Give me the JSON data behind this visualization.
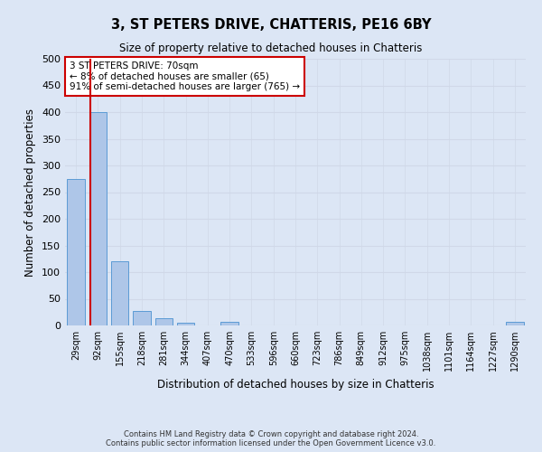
{
  "title": "3, ST PETERS DRIVE, CHATTERIS, PE16 6BY",
  "subtitle": "Size of property relative to detached houses in Chatteris",
  "xlabel": "Distribution of detached houses by size in Chatteris",
  "ylabel": "Number of detached properties",
  "footer_line1": "Contains HM Land Registry data © Crown copyright and database right 2024.",
  "footer_line2": "Contains public sector information licensed under the Open Government Licence v3.0.",
  "bar_color": "#aec6e8",
  "bar_edge_color": "#5b9bd5",
  "categories": [
    "29sqm",
    "92sqm",
    "155sqm",
    "218sqm",
    "281sqm",
    "344sqm",
    "407sqm",
    "470sqm",
    "533sqm",
    "596sqm",
    "660sqm",
    "723sqm",
    "786sqm",
    "849sqm",
    "912sqm",
    "975sqm",
    "1038sqm",
    "1101sqm",
    "1164sqm",
    "1227sqm",
    "1290sqm"
  ],
  "values": [
    275,
    400,
    120,
    27,
    13,
    5,
    0,
    6,
    0,
    0,
    0,
    0,
    0,
    0,
    0,
    0,
    0,
    0,
    0,
    0,
    6
  ],
  "ylim": [
    0,
    500
  ],
  "yticks": [
    0,
    50,
    100,
    150,
    200,
    250,
    300,
    350,
    400,
    450,
    500
  ],
  "property_label": "3 ST PETERS DRIVE: 70sqm",
  "annotation_line1": "← 8% of detached houses are smaller (65)",
  "annotation_line2": "91% of semi-detached houses are larger (765) →",
  "annotation_box_color": "#ffffff",
  "annotation_box_edge": "#cc0000",
  "property_line_color": "#cc0000",
  "grid_color": "#d0d8e8",
  "bg_color": "#dce6f5",
  "plot_bg_color": "#dce6f5"
}
